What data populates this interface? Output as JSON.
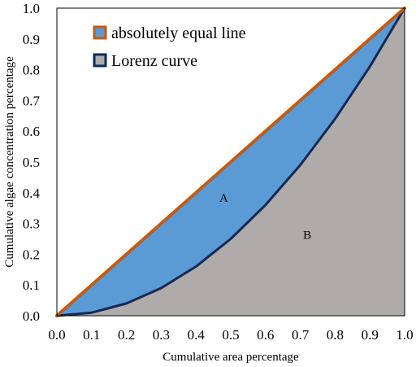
{
  "chart_data": {
    "type": "line",
    "xlabel": "Cumulative area percentage",
    "ylabel": "Cumulative algae concentration percentage",
    "xlim": [
      0,
      1
    ],
    "ylim": [
      0,
      1
    ],
    "x_ticks": [
      "0.0",
      "0.1",
      "0.2",
      "0.3",
      "0.4",
      "0.5",
      "0.6",
      "0.7",
      "0.8",
      "0.9",
      "1.0"
    ],
    "y_ticks": [
      "0.0",
      "0.1",
      "0.2",
      "0.3",
      "0.4",
      "0.5",
      "0.6",
      "0.7",
      "0.8",
      "0.9",
      "1.0"
    ],
    "grid": false,
    "legend_position": "top-left",
    "series": [
      {
        "name": "absolutely equal line",
        "color": "#C55A11",
        "x": [
          0,
          1
        ],
        "y": [
          0,
          1
        ]
      },
      {
        "name": "Lorenz curve",
        "color": "#0E2A5C",
        "x": [
          0,
          0.1,
          0.2,
          0.3,
          0.4,
          0.5,
          0.6,
          0.7,
          0.8,
          0.9,
          1.0
        ],
        "y": [
          0,
          0.01,
          0.04,
          0.09,
          0.16,
          0.25,
          0.36,
          0.49,
          0.64,
          0.81,
          1.0
        ]
      }
    ],
    "regions": [
      {
        "label": "A",
        "color": "#5B9BD5",
        "between": "absolutely equal line and Lorenz curve"
      },
      {
        "label": "B",
        "color": "#AFABAB",
        "between": "Lorenz curve and x-axis"
      }
    ],
    "annotations": [
      {
        "text": "A",
        "x": 0.48,
        "y": 0.37
      },
      {
        "text": "B",
        "x": 0.72,
        "y": 0.25
      }
    ]
  }
}
